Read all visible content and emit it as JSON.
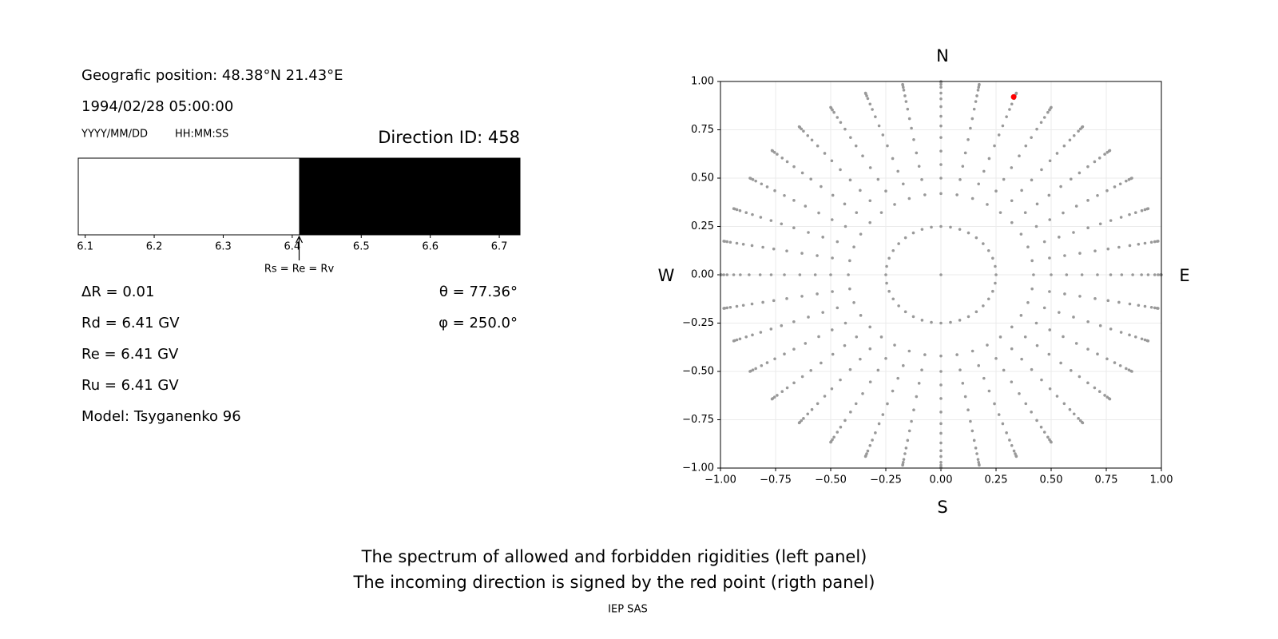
{
  "header": {
    "position": "Geografic position: 48.38°N 21.43°E",
    "datetime": "1994/02/28 05:00:00",
    "date_format": "YYYY/MM/DD",
    "time_format": "HH:MM:SS",
    "direction_id": "Direction ID: 458"
  },
  "left_params": [
    "ΔR = 0.01",
    "Rd = 6.41 GV",
    "Re = 6.41 GV",
    "Ru = 6.41 GV",
    "Model: Tsyganenko 96"
  ],
  "right_params": [
    "θ = 77.36°",
    "φ = 250.0°"
  ],
  "chart_data": [
    {
      "type": "spectrum",
      "segments": [
        {
          "start": 6.09,
          "end": 6.41,
          "color": "#ffffff"
        },
        {
          "start": 6.41,
          "end": 6.73,
          "color": "#000000"
        }
      ],
      "xlim": [
        6.09,
        6.73
      ],
      "xticks": [
        6.1,
        6.2,
        6.3,
        6.4,
        6.5,
        6.6,
        6.7
      ],
      "annotation": {
        "text": "Rs = Re = Rv",
        "value": 6.41
      }
    },
    {
      "type": "scatter",
      "direction_labels": {
        "north": "N",
        "south": "S",
        "west": "W",
        "east": "E"
      },
      "grid_points": {
        "color": "#999999",
        "radii": [
          0.25,
          0.42,
          0.5,
          0.57,
          0.64,
          0.71,
          0.77,
          0.82,
          0.87,
          0.91,
          0.94,
          0.97,
          0.985,
          0.996,
          1.0
        ],
        "azimuths": [
          0,
          10,
          20,
          30,
          40,
          50,
          60,
          70,
          80,
          90,
          100,
          110,
          120,
          130,
          140,
          150,
          160,
          170,
          180,
          190,
          200,
          210,
          220,
          230,
          240,
          250,
          260,
          270,
          280,
          290,
          300,
          310,
          320,
          330,
          340,
          350
        ]
      },
      "center_point": {
        "x": 0,
        "y": 0
      },
      "highlight": {
        "x": 0.33,
        "y": 0.92,
        "color": "#ff0000"
      },
      "xlim": [
        -1,
        1
      ],
      "ylim": [
        -1,
        1
      ],
      "xticks": [
        {
          "value": -1,
          "label": "−1.00"
        },
        {
          "value": -0.75,
          "label": "−0.75"
        },
        {
          "value": -0.5,
          "label": "−0.50"
        },
        {
          "value": -0.25,
          "label": "−0.25"
        },
        {
          "value": 0,
          "label": "0.00"
        },
        {
          "value": 0.25,
          "label": "0.25"
        },
        {
          "value": 0.5,
          "label": "0.50"
        },
        {
          "value": 0.75,
          "label": "0.75"
        },
        {
          "value": 1,
          "label": "1.00"
        }
      ],
      "yticks": [
        {
          "value": -1,
          "label": "−1.00"
        },
        {
          "value": -0.75,
          "label": "−0.75"
        },
        {
          "value": -0.5,
          "label": "−0.50"
        },
        {
          "value": -0.25,
          "label": "−0.25"
        },
        {
          "value": 0,
          "label": "0.00"
        },
        {
          "value": 0.25,
          "label": "0.25"
        },
        {
          "value": 0.5,
          "label": "0.50"
        },
        {
          "value": 0.75,
          "label": "0.75"
        },
        {
          "value": 1,
          "label": "1.00"
        }
      ],
      "grid": true
    }
  ],
  "footer": {
    "caption": [
      "The spectrum of allowed and forbidden rigidities (left panel)",
      "The incoming direction is signed by the red point (rigth panel)"
    ],
    "credit": "IEP SAS"
  }
}
